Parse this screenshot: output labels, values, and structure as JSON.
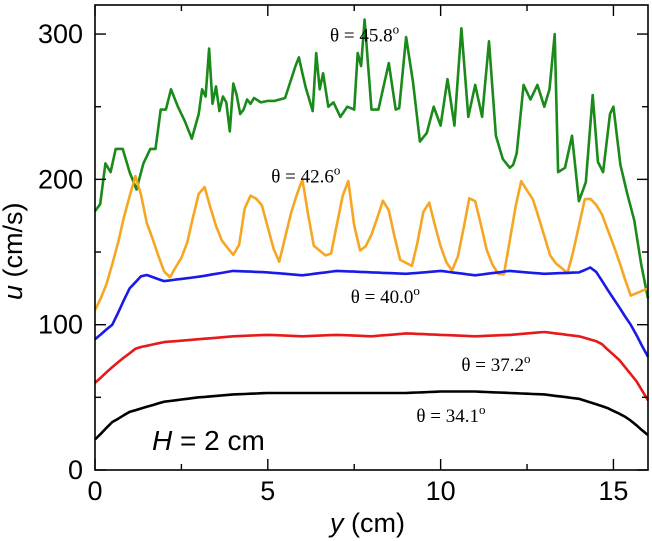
{
  "chart_data": {
    "type": "line",
    "title": "",
    "xlabel_italic": "y",
    "xlabel_rest": " (cm)",
    "ylabel_italic": "u",
    "ylabel_rest": " (cm/s)",
    "xlim": [
      0,
      16
    ],
    "ylim": [
      0,
      320
    ],
    "xticks": [
      0,
      5,
      10,
      15
    ],
    "yticks": [
      0,
      100,
      200,
      300
    ],
    "grid": false,
    "panel_label_italic": "H",
    "panel_label_rest": " = 2 cm",
    "series": [
      {
        "name": "θ = 45.8",
        "label_main": "θ = 45.8",
        "label_sup": "o",
        "label_at": [
          6.8,
          295
        ],
        "color": "#1a8a1a",
        "x": [
          0.0,
          0.15,
          0.3,
          0.45,
          0.6,
          0.8,
          1.0,
          1.2,
          1.4,
          1.6,
          1.75,
          1.9,
          2.05,
          2.2,
          2.4,
          2.6,
          2.8,
          3.0,
          3.1,
          3.2,
          3.3,
          3.4,
          3.5,
          3.6,
          3.7,
          3.8,
          3.9,
          4.0,
          4.1,
          4.2,
          4.3,
          4.4,
          4.5,
          4.6,
          4.8,
          5.0,
          5.2,
          5.5,
          5.8,
          5.9,
          6.0,
          6.1,
          6.3,
          6.4,
          6.5,
          6.6,
          6.75,
          6.9,
          7.1,
          7.3,
          7.5,
          7.6,
          7.7,
          7.8,
          8.0,
          8.2,
          8.5,
          8.7,
          8.8,
          9.0,
          9.2,
          9.4,
          9.6,
          9.8,
          10.0,
          10.2,
          10.4,
          10.6,
          10.8,
          11.0,
          11.2,
          11.4,
          11.6,
          11.8,
          12.0,
          12.1,
          12.2,
          12.4,
          12.6,
          12.8,
          13.0,
          13.15,
          13.3,
          13.4,
          13.6,
          13.8,
          14.0,
          14.2,
          14.4,
          14.55,
          14.7,
          14.9,
          15.0,
          15.2,
          15.4,
          15.6,
          15.8,
          16.0
        ],
        "y": [
          178,
          183,
          211,
          205,
          221,
          221,
          205,
          193,
          211,
          221,
          221,
          248,
          248,
          262,
          250,
          240,
          228,
          245,
          262,
          257,
          290,
          252,
          264,
          247,
          257,
          253,
          233,
          266,
          258,
          245,
          248,
          255,
          252,
          256,
          253,
          254,
          254,
          256,
          278,
          284,
          273,
          263,
          247,
          287,
          262,
          273,
          250,
          253,
          243,
          250,
          248,
          287,
          278,
          310,
          248,
          248,
          280,
          248,
          249,
          298,
          267,
          226,
          232,
          250,
          237,
          269,
          237,
          304,
          243,
          265,
          243,
          295,
          230,
          214,
          208,
          210,
          218,
          265,
          255,
          265,
          250,
          262,
          300,
          205,
          208,
          230,
          185,
          198,
          258,
          212,
          205,
          245,
          250,
          210,
          190,
          172,
          142,
          118
        ],
        "ymap_note": ""
      }
    ]
  }
}
